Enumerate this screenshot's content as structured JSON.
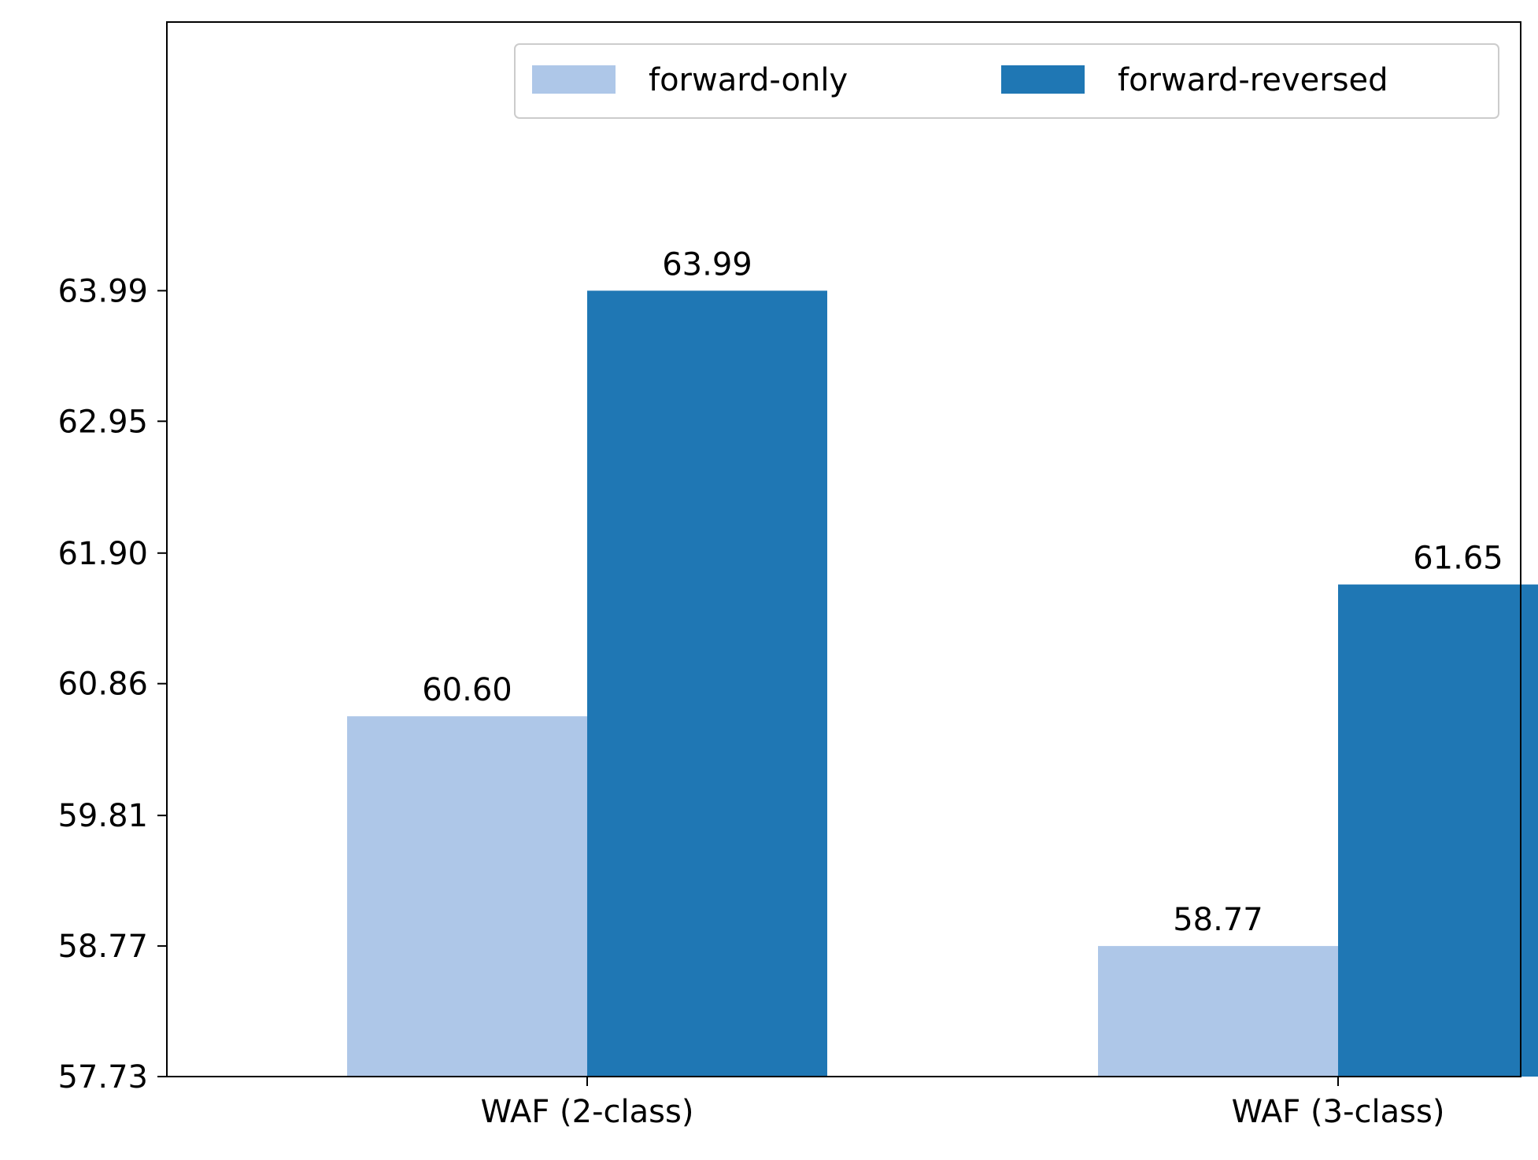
{
  "chart_data": {
    "type": "bar",
    "title": "",
    "xlabel": "",
    "ylabel": "",
    "categories": [
      "WAF (2-class)",
      "WAF (3-class)"
    ],
    "series": [
      {
        "name": "forward-only",
        "values": [
          60.6,
          58.77
        ],
        "color": "#aec7e8"
      },
      {
        "name": "forward-reversed",
        "values": [
          63.99,
          61.65
        ],
        "color": "#1f77b4"
      }
    ],
    "ylim": [
      57.73,
      66.13
    ],
    "yticks": [
      "57.73",
      "58.77",
      "59.81",
      "60.86",
      "61.90",
      "62.95",
      "63.99"
    ],
    "data_labels": [
      [
        "60.60",
        "58.77"
      ],
      [
        "63.99",
        "61.65"
      ]
    ],
    "legend_placement": "top-right",
    "legend_columns": 2,
    "grid": false
  }
}
